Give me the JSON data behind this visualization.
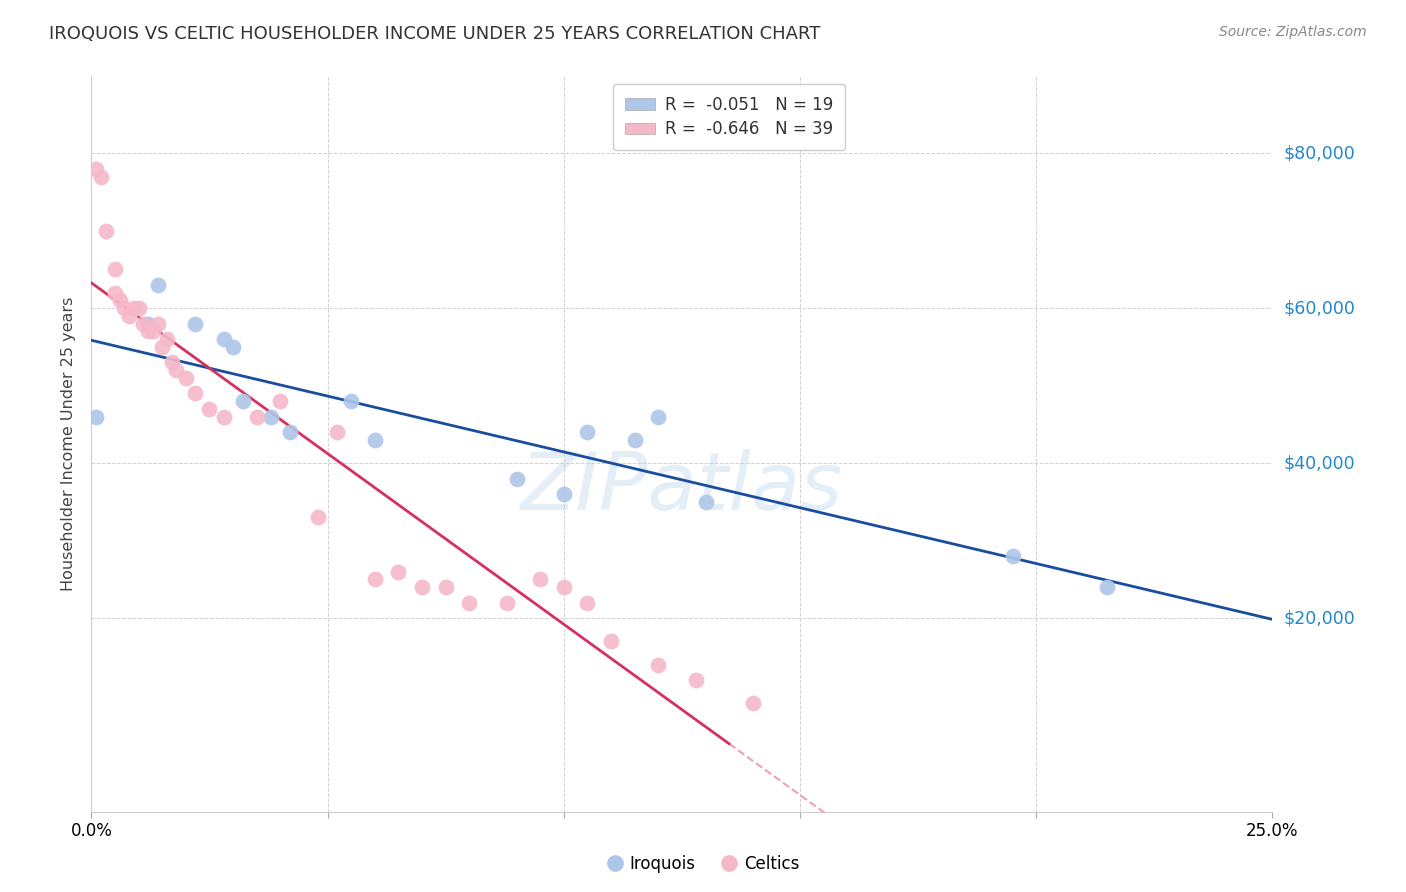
{
  "title": "IROQUOIS VS CELTIC HOUSEHOLDER INCOME UNDER 25 YEARS CORRELATION CHART",
  "source": "Source: ZipAtlas.com",
  "ylabel": "Householder Income Under 25 years",
  "legend_blue": "R =  -0.051   N = 19",
  "legend_pink": "R =  -0.646   N = 39",
  "legend_label_blue": "Iroquois",
  "legend_label_pink": "Celtics",
  "watermark": "ZIPatlas",
  "ylim": [
    -5000,
    90000
  ],
  "xlim": [
    0.0,
    0.25
  ],
  "yticks": [
    20000,
    40000,
    60000,
    80000
  ],
  "ytick_labels": [
    "$20,000",
    "$40,000",
    "$60,000",
    "$80,000"
  ],
  "blue_color": "#aec6e8",
  "pink_color": "#f5b8c8",
  "blue_line_color": "#1a4d9e",
  "pink_line_color": "#d43060",
  "iroquois_x": [
    0.001,
    0.012,
    0.014,
    0.022,
    0.028,
    0.03,
    0.032,
    0.038,
    0.042,
    0.055,
    0.06,
    0.09,
    0.1,
    0.105,
    0.115,
    0.12,
    0.13,
    0.195,
    0.215
  ],
  "iroquois_y": [
    46000,
    58000,
    63000,
    58000,
    56000,
    55000,
    48000,
    46000,
    44000,
    48000,
    43000,
    38000,
    36000,
    44000,
    43000,
    46000,
    35000,
    28000,
    24000
  ],
  "celtics_x": [
    0.001,
    0.002,
    0.003,
    0.005,
    0.005,
    0.006,
    0.007,
    0.008,
    0.009,
    0.01,
    0.011,
    0.012,
    0.013,
    0.014,
    0.015,
    0.016,
    0.017,
    0.018,
    0.02,
    0.022,
    0.025,
    0.028,
    0.035,
    0.04,
    0.048,
    0.052,
    0.06,
    0.065,
    0.07,
    0.075,
    0.08,
    0.088,
    0.095,
    0.1,
    0.105,
    0.11,
    0.12,
    0.128,
    0.14
  ],
  "celtics_y": [
    78000,
    77000,
    70000,
    65000,
    62000,
    61000,
    60000,
    59000,
    60000,
    60000,
    58000,
    57000,
    57000,
    58000,
    55000,
    56000,
    53000,
    52000,
    51000,
    49000,
    47000,
    46000,
    46000,
    48000,
    33000,
    44000,
    25000,
    26000,
    24000,
    24000,
    22000,
    22000,
    25000,
    24000,
    22000,
    17000,
    14000,
    12000,
    9000
  ]
}
